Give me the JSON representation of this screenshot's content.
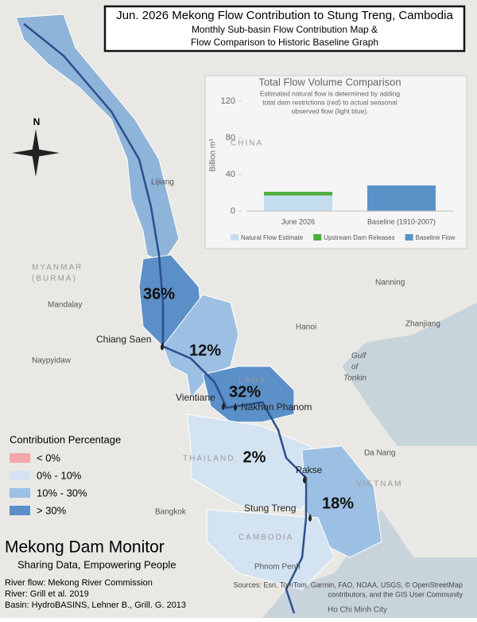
{
  "header": {
    "title": "Jun. 2026 Mekong Flow Contribution to Stung Treng, Cambodia",
    "subtitle_lines": [
      "Monthly Sub-basin Flow Contribution Map &",
      "Flow Comparison to Historic Baseline Graph"
    ]
  },
  "chart_data": {
    "type": "stacked-bar",
    "title": "Total Flow Volume Comparison",
    "subtitle_lines": [
      "Estimated natural flow is determined by adding",
      "total dam restrictions (red) to actual seasonal",
      "observed flow (light blue)."
    ],
    "y_label": "Billion m³",
    "categories": [
      "June 2026",
      "Baseline (1910-2007)"
    ],
    "series": [
      {
        "name": "Natural Flow Estimate",
        "color": "#c3dcee",
        "values": [
          17,
          null
        ]
      },
      {
        "name": "Upstream Dam Releases",
        "color": "#4caf3c",
        "values": [
          4,
          null
        ]
      },
      {
        "name": "Baseline Flow",
        "color": "#5b93c9",
        "values": [
          null,
          28
        ]
      }
    ],
    "ylim": [
      0,
      130
    ],
    "yticks": [
      0,
      40,
      80,
      120
    ]
  },
  "map": {
    "subbasins": [
      {
        "label": "36%"
      },
      {
        "label": "12%"
      },
      {
        "label": "32%"
      },
      {
        "label": "2%"
      },
      {
        "label": "18%"
      }
    ],
    "stations": [
      "Chiang Saen",
      "Vientiane",
      "Nakhon Phanom",
      "Pakse",
      "Stung Treng"
    ],
    "places": [
      "Lijiang",
      "Nanning",
      "Hanoi",
      "Zhanjiang",
      "Mandalay",
      "Naypyidaw",
      "Bangkok",
      "Da Nang",
      "Phnom Penh",
      "Ho Chi Minh City"
    ],
    "countries": [
      "MYANMAR",
      "(BURMA)",
      "LAOS",
      "THAILAND",
      "CAMBODIA",
      "VIETNAM",
      "CHINA"
    ],
    "water": [
      "Gulf",
      "of",
      "Tonkin"
    ],
    "north": "N"
  },
  "legend": {
    "title": "Contribution Percentage",
    "items": [
      {
        "label": "< 0%",
        "color": "#f2a7ab"
      },
      {
        "label": "0% - 10%",
        "color": "#d4e3f2"
      },
      {
        "label": "10% - 30%",
        "color": "#9cc0e3"
      },
      {
        "label": "> 30%",
        "color": "#5b8fc7"
      }
    ]
  },
  "footer": {
    "brand": "Mekong Dam Monitor",
    "tagline": "Sharing Data, Empowering People",
    "credits": [
      "River flow: Mekong River Commission",
      "River: Grill et al. 2019",
      "Basin: HydroBASINS, Lehner B., Grill. G. 2013"
    ],
    "sources": [
      "Sources: Esri, TomTom, Garmin, FAO, NOAA, USGS, © OpenStreetMap",
      "contributors, and the GIS User Community"
    ]
  }
}
